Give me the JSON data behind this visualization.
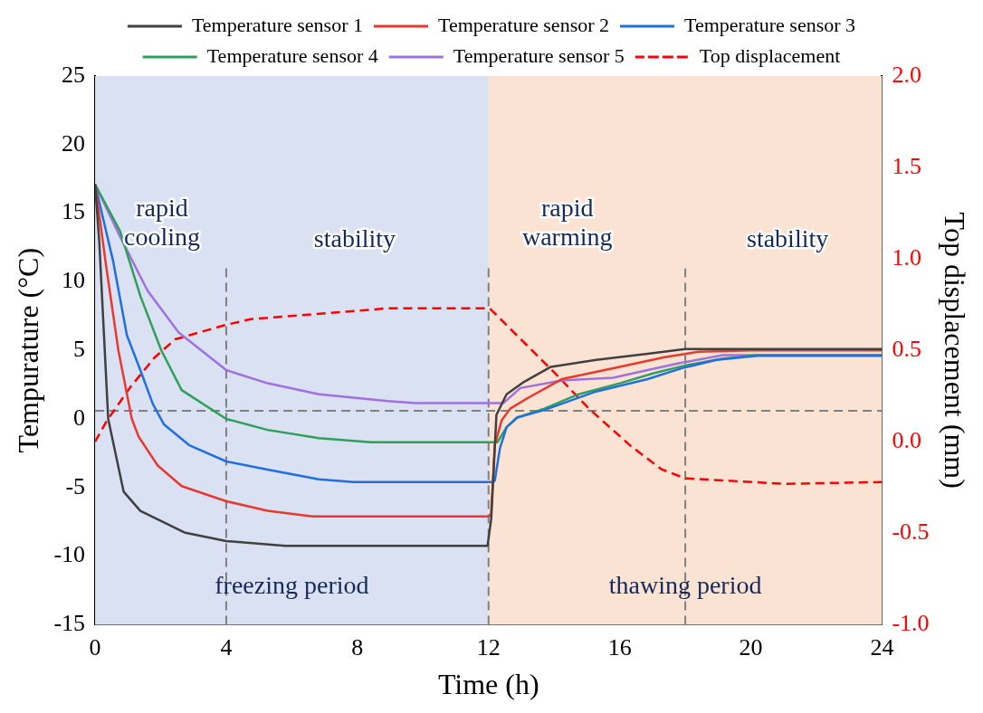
{
  "chart_data": {
    "type": "line",
    "xlabel": "Time (h)",
    "ylabel": "Tempurature (°C)",
    "y2label": "Top displacement (mm)",
    "xlim": [
      0,
      24
    ],
    "xticks": [
      0,
      4,
      8,
      12,
      16,
      20,
      24
    ],
    "ylim": [
      -15,
      25
    ],
    "yticks": [
      -15,
      -10,
      -5,
      0,
      5,
      10,
      15,
      20,
      25
    ],
    "y2lim": [
      -1,
      2
    ],
    "y2ticks": [
      {
        "value": -1,
        "label": "-1.0"
      },
      {
        "value": -0.5,
        "label": "-0.5"
      },
      {
        "value": 0,
        "label": "0.0"
      },
      {
        "value": 0.5,
        "label": "0.5"
      },
      {
        "value": 1,
        "label": "1.0"
      },
      {
        "value": 1.5,
        "label": "1.5"
      },
      {
        "value": 2,
        "label": "2.0"
      }
    ],
    "grid": false,
    "legend": "top",
    "marker": "none",
    "series": [
      {
        "name": "Temperature sensor 1",
        "color": "#404040",
        "x": [
          0,
          0.13,
          0.4,
          0.87,
          1.38,
          2.75,
          4.0,
          5.8,
          11.97,
          12.08,
          12.24,
          12.55,
          13.08,
          13.9,
          15.28,
          16.85,
          18.0,
          24
        ],
        "values": [
          17.1,
          12.8,
          0,
          -5.3,
          -6.7,
          -8.3,
          -8.9,
          -9.25,
          -9.25,
          -7.3,
          0.3,
          1.8,
          2.7,
          3.8,
          4.3,
          4.75,
          5.1,
          5.1
        ]
      },
      {
        "name": "Temperature sensor 2",
        "color": "#e8382f",
        "x": [
          0,
          0.34,
          0.71,
          1.12,
          1.33,
          1.91,
          2.64,
          4.0,
          5.26,
          6.63,
          12.0,
          12.08,
          12.19,
          12.4,
          12.66,
          13.18,
          14.23,
          15.8,
          17.37,
          18.4,
          20.0,
          24
        ],
        "values": [
          17.1,
          11.1,
          5.0,
          0,
          -1.3,
          -3.4,
          -4.9,
          -6.0,
          -6.7,
          -7.1,
          -7.1,
          -6.9,
          -1.9,
          -0.1,
          0.75,
          1.5,
          2.9,
          3.7,
          4.5,
          4.9,
          5.0,
          5.0
        ]
      },
      {
        "name": "Temperature sensor 3",
        "color": "#1f6fe0",
        "x": [
          0,
          0.55,
          0.97,
          1.39,
          1.76,
          2.1,
          2.86,
          4.0,
          5.26,
          6.83,
          7.88,
          12.15,
          12.19,
          12.35,
          12.55,
          12.87,
          13.7,
          15.28,
          16.85,
          17.9,
          18.95,
          20.2,
          24
        ],
        "values": [
          17.1,
          11.5,
          6.1,
          3.5,
          1.1,
          -0.4,
          -1.9,
          -3.1,
          -3.7,
          -4.4,
          -4.6,
          -4.6,
          -4.5,
          -2.1,
          -0.6,
          0.1,
          0.65,
          2.0,
          2.9,
          3.7,
          4.3,
          4.6,
          4.6
        ]
      },
      {
        "name": "Temperature sensor 4",
        "color": "#2ea05a",
        "x": [
          0,
          0.76,
          1.39,
          2.02,
          2.64,
          4.0,
          5.26,
          6.83,
          8.41,
          12.27,
          12.55,
          12.87,
          13.7,
          14.75,
          16.0,
          17.06,
          18.0,
          19.15,
          20.2,
          24
        ],
        "values": [
          17.1,
          13.7,
          8.9,
          5.0,
          2.1,
          0,
          -0.8,
          -1.4,
          -1.7,
          -1.7,
          -0.6,
          0.1,
          0.75,
          1.8,
          2.6,
          3.35,
          3.9,
          4.4,
          4.65,
          4.65
        ]
      },
      {
        "name": "Temperature sensor 5",
        "color": "#a070e0",
        "x": [
          0,
          0.76,
          1.6,
          2.55,
          4.0,
          5.26,
          6.83,
          8.93,
          9.76,
          12.45,
          12.97,
          14.23,
          15.8,
          16.85,
          17.9,
          19.15,
          24
        ],
        "values": [
          17.1,
          13.3,
          9.35,
          6.3,
          3.56,
          2.6,
          1.8,
          1.3,
          1.15,
          1.15,
          2.25,
          2.8,
          3.0,
          3.56,
          4.1,
          4.65,
          4.65
        ]
      },
      {
        "name": "Top displacement",
        "color": "#ff0000",
        "axis": "y2",
        "line_style": "dashed",
        "x": [
          0,
          0.34,
          1.08,
          1.81,
          2.44,
          4.0,
          4.74,
          8.93,
          12.03,
          14.0,
          15.07,
          16.32,
          17.27,
          18.0,
          21.04,
          24
        ],
        "values": [
          0.0,
          0.11,
          0.3,
          0.46,
          0.56,
          0.64,
          0.67,
          0.73,
          0.73,
          0.38,
          0.18,
          -0.02,
          -0.15,
          -0.2,
          -0.23,
          -0.22
        ]
      }
    ],
    "bands": [
      {
        "axis": "x",
        "from": 0,
        "to": 12,
        "label": "freezing period",
        "color": "#d9e1f2"
      },
      {
        "axis": "x",
        "from": 12,
        "to": 24,
        "label": "thawing period",
        "color": "#fbe3d4"
      }
    ],
    "ref_lines": [
      {
        "axis": "y",
        "value": 0.6,
        "color": "#808080",
        "line_style": "dashed"
      },
      {
        "axis": "x",
        "value": 4,
        "color": "#808080",
        "line_style": "dashed"
      },
      {
        "axis": "x",
        "value": 12,
        "color": "#808080",
        "line_style": "dashed"
      },
      {
        "axis": "x",
        "value": 18,
        "color": "#808080",
        "line_style": "dashed"
      }
    ],
    "annotations": [
      "rapid cooling",
      "stability",
      "rapid warming",
      "stability"
    ]
  }
}
